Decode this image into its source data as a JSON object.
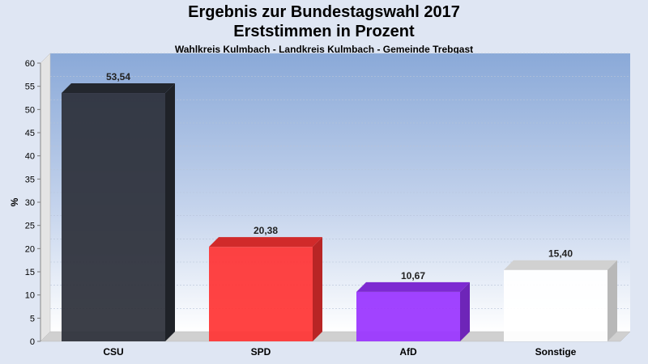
{
  "chart_data": {
    "type": "bar",
    "title": "Ergebnis zur Bundestagswahl 2017",
    "subtitle": "Erststimmen in Prozent",
    "caption": "Wahlkreis Kulmbach - Landkreis Kulmbach - Gemeinde Trebgast",
    "ylabel": "%",
    "xlabel": "",
    "ylim": [
      0,
      60
    ],
    "yticks": [
      0,
      5,
      10,
      15,
      20,
      25,
      30,
      35,
      40,
      45,
      50,
      55,
      60
    ],
    "grid": true,
    "categories": [
      "CSU",
      "SPD",
      "AfD",
      "Sonstige"
    ],
    "values": [
      53.54,
      20.38,
      10.67,
      15.4
    ],
    "value_labels": [
      "53,54",
      "20,38",
      "10,67",
      "15,40"
    ],
    "colors": [
      "#2b2f38",
      "#ff3333",
      "#9933ff",
      "#ffffff"
    ]
  }
}
